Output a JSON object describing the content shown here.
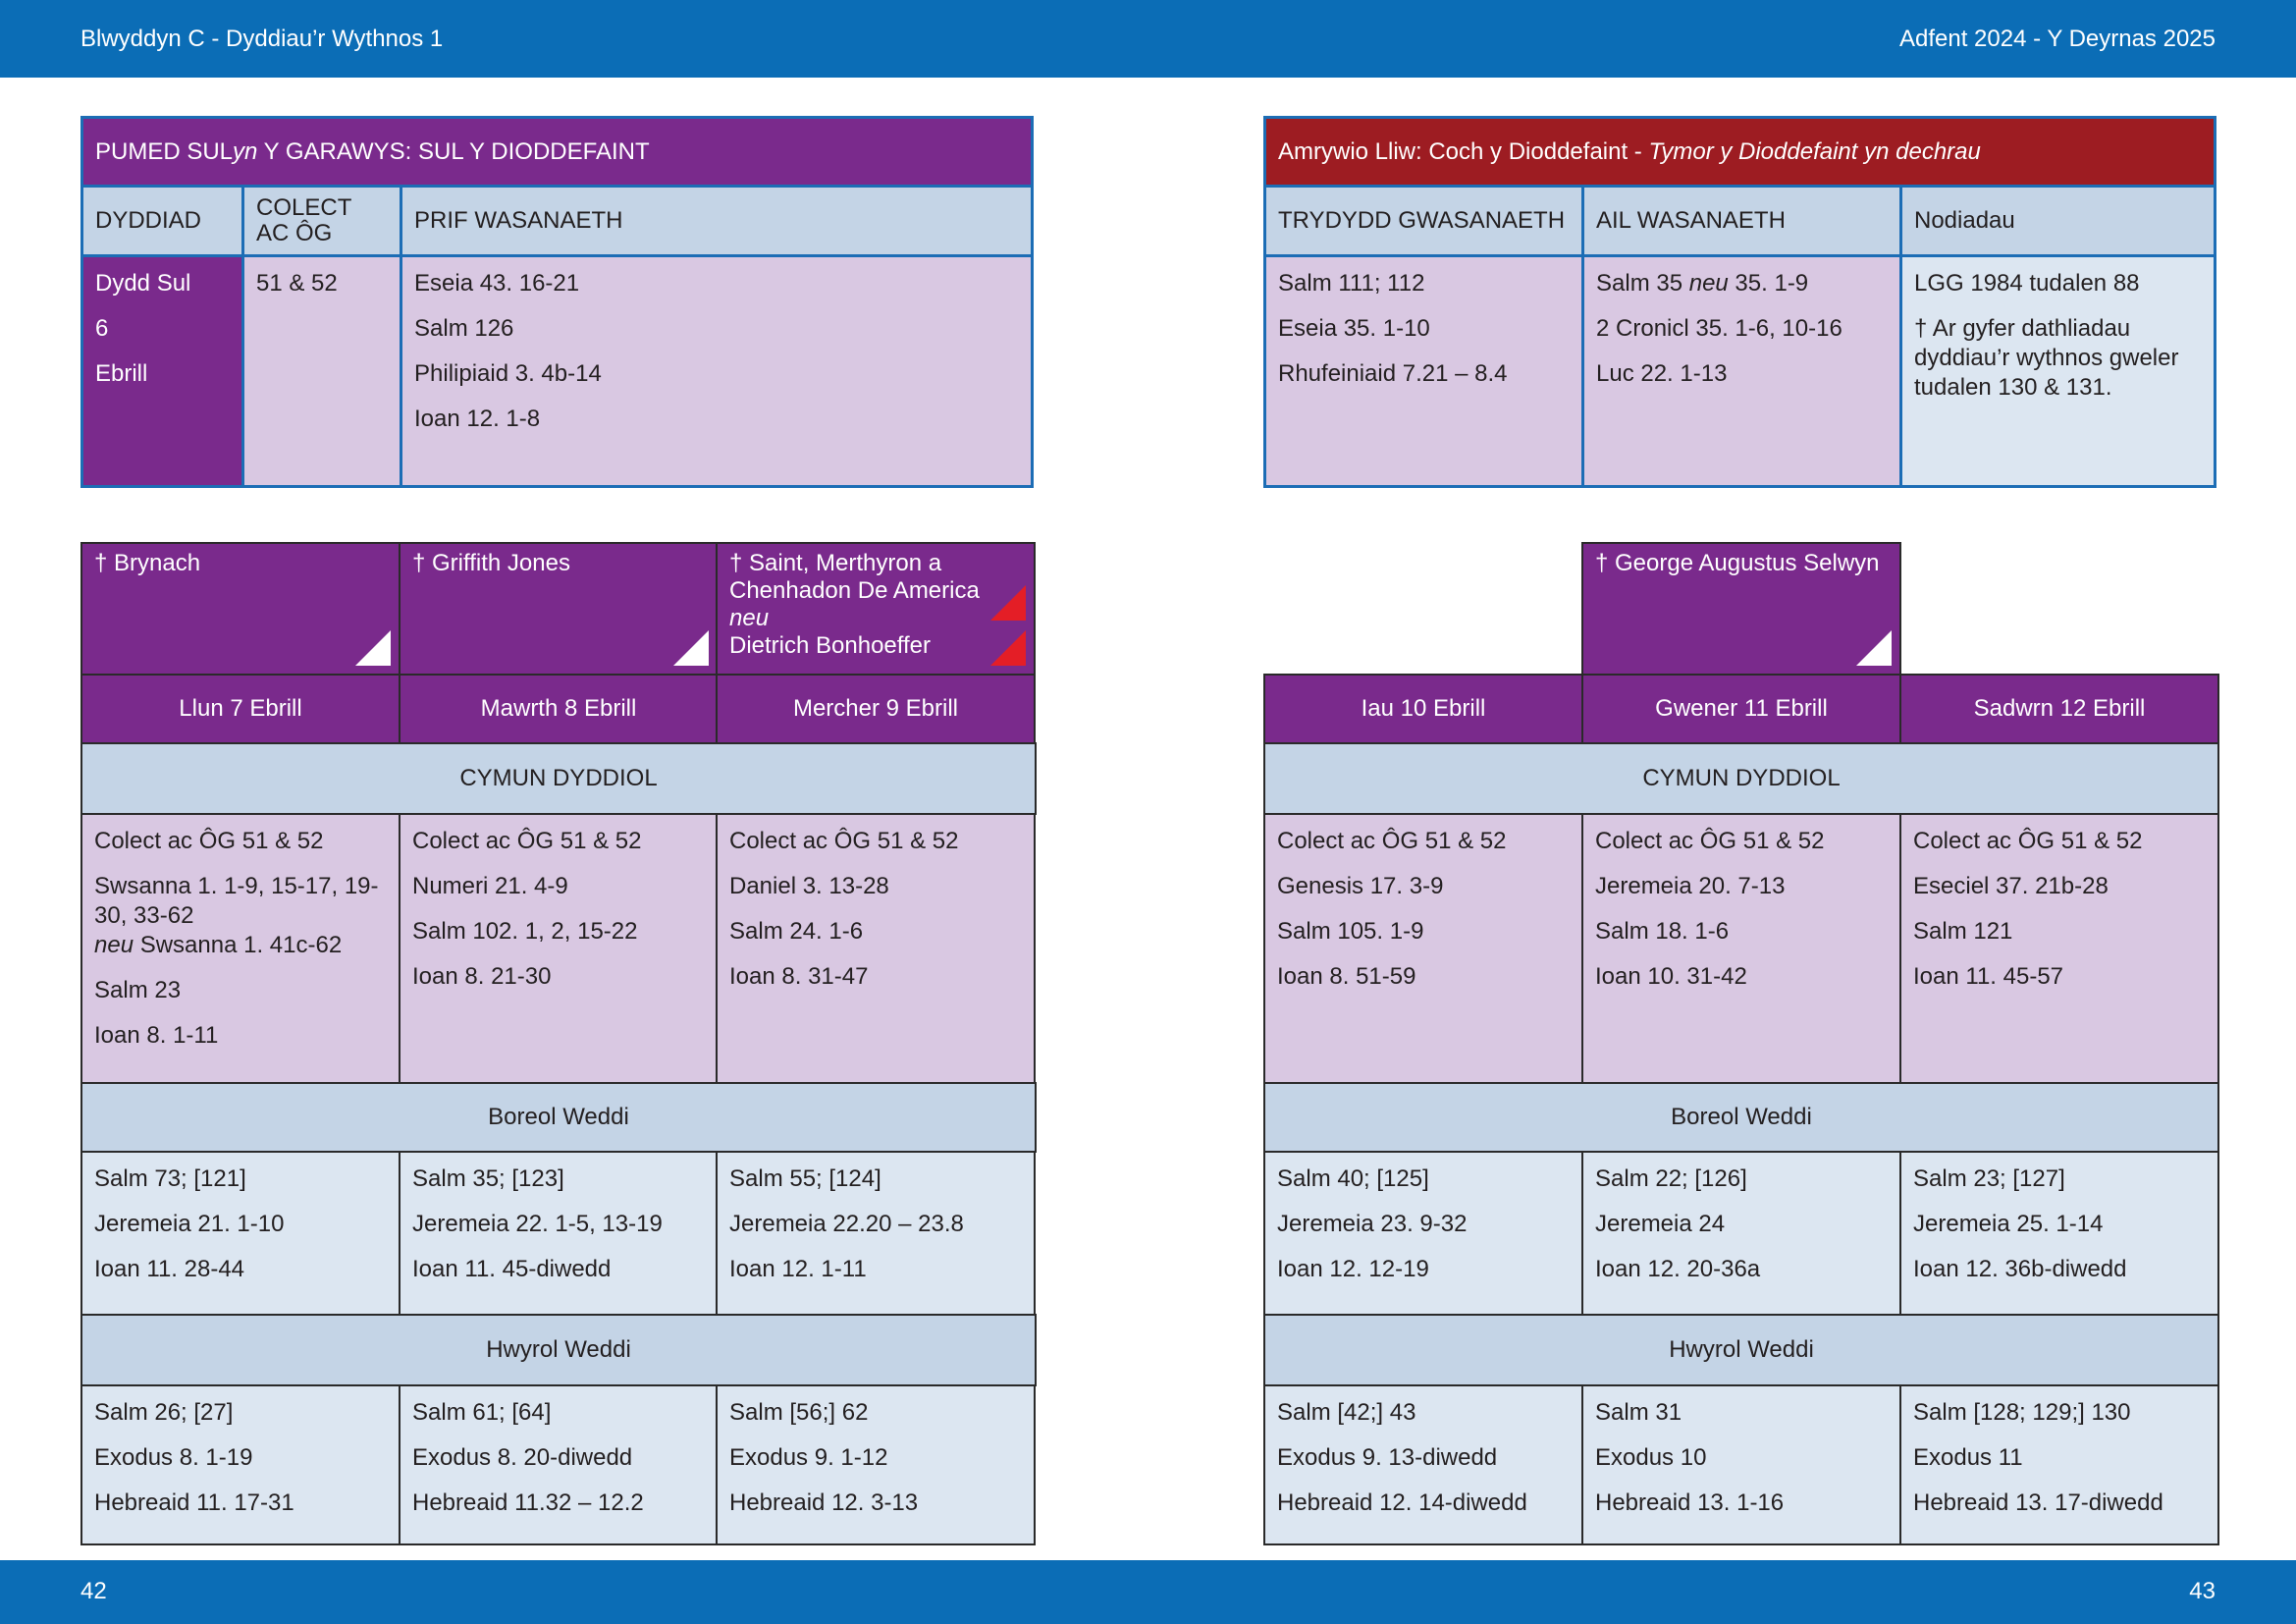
{
  "header": {
    "left": "Blwyddyn  C - Dyddiau’r Wythnos 1",
    "right": "Adfent  2024 - Y Deyrnas 2025"
  },
  "footer": {
    "left_page": "42",
    "right_page": "43"
  },
  "colors": {
    "purple": "#7a2a8c",
    "red": "#9d1c22",
    "blue": "#0b6db6",
    "lavender": "#d9c8e2",
    "header_blue": "#c4d4e6"
  },
  "sunday": {
    "title_pre": "PUMED SUL ",
    "title_italic": "yn",
    "title_post": " Y GARAWYS: SUL Y DIODDEFAINT",
    "headers": [
      "DYDDIAD",
      "COLECT AC ÔG",
      "PRIF WASANAETH"
    ],
    "date": [
      "Dydd Sul",
      "6",
      "Ebrill"
    ],
    "collect": "51 & 52",
    "readings": [
      "Eseia 43. 16-21",
      "Salm 126",
      "Philipiaid 3. 4b-14",
      "Ioan 12. 1-8"
    ]
  },
  "colour_box": {
    "title": "Amrywio Lliw: Coch y Dioddefaint - ",
    "title_italic": "Tymor y Dioddefaint yn dechrau",
    "headers": [
      "TRYDYDD GWASANAETH",
      "AIL WASANAETH",
      "Nodiadau"
    ],
    "third": [
      "Salm 111; 112",
      "Eseia 35. 1-10",
      "Rhufeiniaid 7.21 – 8.4"
    ],
    "second": [
      {
        "pre": "Salm 35 ",
        "it": "neu",
        "post": " 35. 1-9"
      },
      {
        "pre": "2 Cronicl 35. 1-6, 10-16"
      },
      {
        "pre": "Luc 22. 1-13"
      }
    ],
    "notes": [
      "LGG 1984 tudalen 88",
      "† Ar gyfer dathliadau dyddiau’r wythnos gweler tudalen 130 & 131."
    ]
  },
  "sections": {
    "cymun": "CYMUN DYDDIOL",
    "boreol": "Boreol Weddi",
    "hwyrol": "Hwyrol Weddi"
  },
  "days": [
    {
      "saint": [
        {
          "pre": "† Brynach"
        }
      ],
      "marks": [
        "white-triangle"
      ],
      "label": "Llun 7 Ebrill",
      "cymun": [
        {
          "pre": "Colect ac ÔG 51 & 52"
        },
        {
          "pre": "Swsanna 1. 1-9, 15-17, 19-30, 33-62",
          "br": true,
          "it": "neu",
          "post": " Swsanna 1. 41c-62"
        },
        {
          "pre": "Salm 23"
        },
        {
          "pre": "Ioan 8. 1-11"
        }
      ],
      "boreol": [
        "Salm 73; [121]",
        "Jeremeia 21. 1-10",
        "Ioan 11. 28-44"
      ],
      "hwyrol": [
        "Salm 26; [27]",
        "Exodus 8. 1-19",
        "Hebreaid 11. 17-31"
      ]
    },
    {
      "saint": [
        {
          "pre": "† Griffith Jones"
        }
      ],
      "marks": [
        "white-triangle"
      ],
      "label": "Mawrth 8 Ebrill",
      "cymun": [
        {
          "pre": "Colect ac ÔG 51 & 52"
        },
        {
          "pre": "Numeri 21. 4-9"
        },
        {
          "pre": "Salm 102. 1, 2, 15-22"
        },
        {
          "pre": "Ioan 8. 21-30"
        }
      ],
      "boreol": [
        "Salm 35; [123]",
        "Jeremeia 22. 1-5, 13-19",
        "Ioan 11. 45-diwedd"
      ],
      "hwyrol": [
        "Salm 61; [64]",
        "Exodus 8. 20-diwedd",
        "Hebreaid 11.32 – 12.2"
      ]
    },
    {
      "saint": [
        {
          "pre": "† Saint, Merthyron a Chenhadon De America"
        },
        {
          "it": "neu"
        },
        {
          "pre": "Dietrich Bonhoeffer"
        }
      ],
      "marks": [
        "red-triangle",
        "red-triangle"
      ],
      "label": "Mercher 9 Ebrill",
      "cymun": [
        {
          "pre": "Colect ac ÔG 51 & 52"
        },
        {
          "pre": "Daniel 3. 13-28"
        },
        {
          "pre": "Salm 24. 1-6"
        },
        {
          "pre": "Ioan 8. 31-47"
        }
      ],
      "boreol": [
        "Salm 55; [124]",
        "Jeremeia 22.20 – 23.8",
        "Ioan 12. 1-11"
      ],
      "hwyrol": [
        "Salm [56;] 62",
        "Exodus 9. 1-12",
        "Hebreaid 12. 3-13"
      ]
    },
    {
      "saint": null,
      "marks": [],
      "label": "Iau 10 Ebrill",
      "cymun": [
        {
          "pre": "Colect ac ÔG 51 & 52"
        },
        {
          "pre": "Genesis 17. 3-9"
        },
        {
          "pre": "Salm 105. 1-9"
        },
        {
          "pre": "Ioan 8. 51-59"
        }
      ],
      "boreol": [
        "Salm 40; [125]",
        "Jeremeia 23. 9-32",
        "Ioan 12. 12-19"
      ],
      "hwyrol": [
        "Salm [42;] 43",
        "Exodus 9. 13-diwedd",
        "Hebreaid 12. 14-diwedd"
      ]
    },
    {
      "saint": [
        {
          "pre": "† George Augustus Selwyn"
        }
      ],
      "marks": [
        "white-triangle"
      ],
      "label": "Gwener 11 Ebrill",
      "cymun": [
        {
          "pre": "Colect ac ÔG 51 & 52"
        },
        {
          "pre": "Jeremeia 20. 7-13"
        },
        {
          "pre": "Salm 18. 1-6"
        },
        {
          "pre": "Ioan 10. 31-42"
        }
      ],
      "boreol": [
        "Salm 22; [126]",
        "Jeremeia 24",
        "Ioan 12. 20-36a"
      ],
      "hwyrol": [
        "Salm 31",
        "Exodus 10",
        "Hebreaid 13. 1-16"
      ]
    },
    {
      "saint": null,
      "marks": [],
      "label": "Sadwrn 12 Ebrill",
      "cymun": [
        {
          "pre": "Colect ac ÔG 51 & 52"
        },
        {
          "pre": "Eseciel 37. 21b-28"
        },
        {
          "pre": "Salm 121"
        },
        {
          "pre": "Ioan 11. 45-57"
        }
      ],
      "boreol": [
        "Salm 23; [127]",
        "Jeremeia 25. 1-14",
        "Ioan 12. 36b-diwedd"
      ],
      "hwyrol": [
        "Salm [128; 129;] 130",
        "Exodus 11",
        "Hebreaid 13. 17-diwedd"
      ]
    }
  ]
}
